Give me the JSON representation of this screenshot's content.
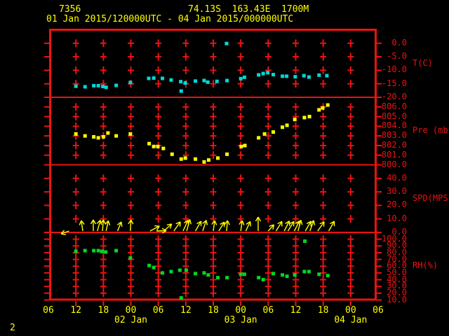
{
  "header": {
    "station_id": "7356",
    "location": "74.13S  163.43E  1700M",
    "time_range": "01 Jan 2015/120000UTC - 04 Jan 2015/000000UTC"
  },
  "footer": {
    "note": "2"
  },
  "colors": {
    "background": "#000000",
    "frame_red": "#ee1212",
    "label_yellow": "#ffff00",
    "temp": "#00d8d8",
    "pressure": "#ffff00",
    "wind": "#ffff00",
    "rh": "#00d822"
  },
  "chart_data": {
    "type": "scatter",
    "title": "station meteogram",
    "time_axis": {
      "start": "01 Jan 2015 06UTC",
      "end": "04 Jan 2015 06UTC",
      "unit_of_x": "hours after 01 Jan 2015 06UTC",
      "tick_interval_hours": 6,
      "hour_labels": [
        "06",
        "12",
        "18",
        "00",
        "06",
        "12",
        "18",
        "00",
        "06",
        "12",
        "18",
        "00",
        "06"
      ],
      "date_labels": [
        "02 Jan",
        "03 Jan",
        "04 Jan"
      ],
      "date_label_anchor_hours": [
        18,
        42,
        66
      ]
    },
    "panels": [
      {
        "name": "temperature",
        "type": "scatter",
        "axis_label": "T(C)",
        "yticks": [
          "0.0",
          "-5.0",
          "-10.0",
          "-15.0",
          "-20.0"
        ],
        "color_key": "temp",
        "points": [
          [
            6.0,
            -15.9
          ],
          [
            8.0,
            -16.1
          ],
          [
            9.9,
            -15.7
          ],
          [
            10.9,
            -15.7
          ],
          [
            11.9,
            -16.0
          ],
          [
            12.6,
            -16.3
          ],
          [
            14.8,
            -15.6
          ],
          [
            17.9,
            -14.5
          ],
          [
            21.9,
            -13.0
          ],
          [
            23.0,
            -12.9
          ],
          [
            24.9,
            -13.0
          ],
          [
            26.8,
            -13.6
          ],
          [
            28.9,
            -14.2
          ],
          [
            29.0,
            -17.7
          ],
          [
            29.9,
            -14.7
          ],
          [
            32.1,
            -14.0
          ],
          [
            34.0,
            -13.8
          ],
          [
            34.8,
            -14.4
          ],
          [
            36.8,
            -14.1
          ],
          [
            38.9,
            -0.1
          ],
          [
            39.0,
            -13.8
          ],
          [
            42.0,
            -13.1
          ],
          [
            42.8,
            -12.6
          ],
          [
            45.9,
            -11.7
          ],
          [
            46.9,
            -11.2
          ],
          [
            47.9,
            -10.9
          ],
          [
            49.1,
            -11.6
          ],
          [
            51.1,
            -12.2
          ],
          [
            52.0,
            -12.2
          ],
          [
            53.9,
            -12.4
          ],
          [
            55.8,
            -12.0
          ],
          [
            56.9,
            -12.5
          ],
          [
            59.1,
            -11.8
          ],
          [
            60.8,
            -12.0
          ]
        ]
      },
      {
        "name": "pressure",
        "type": "scatter",
        "axis_label": "Pre (mb)",
        "yticks": [
          "806.0",
          "805.0",
          "804.0",
          "803.0",
          "802.0",
          "801.0",
          "800.0"
        ],
        "color_key": "pressure",
        "points": [
          [
            6.0,
            803.2
          ],
          [
            8.0,
            803.0
          ],
          [
            9.9,
            802.9
          ],
          [
            10.9,
            802.8
          ],
          [
            12.0,
            802.9
          ],
          [
            13.0,
            803.3
          ],
          [
            14.8,
            803.0
          ],
          [
            17.9,
            803.2
          ],
          [
            22.0,
            802.2
          ],
          [
            23.0,
            801.9
          ],
          [
            23.9,
            801.9
          ],
          [
            25.1,
            801.7
          ],
          [
            27.0,
            801.1
          ],
          [
            29.0,
            800.6
          ],
          [
            29.9,
            800.7
          ],
          [
            32.1,
            800.6
          ],
          [
            34.0,
            800.3
          ],
          [
            35.0,
            800.5
          ],
          [
            37.0,
            800.7
          ],
          [
            39.0,
            801.1
          ],
          [
            42.1,
            801.9
          ],
          [
            42.9,
            802.0
          ],
          [
            45.9,
            802.8
          ],
          [
            47.2,
            803.2
          ],
          [
            49.1,
            803.4
          ],
          [
            51.1,
            803.9
          ],
          [
            52.1,
            804.1
          ],
          [
            53.8,
            804.7
          ],
          [
            55.9,
            804.9
          ],
          [
            57.0,
            805.0
          ],
          [
            59.1,
            805.7
          ],
          [
            59.9,
            805.9
          ],
          [
            61.0,
            806.2
          ]
        ]
      },
      {
        "name": "wind-speed",
        "type": "vector",
        "axis_label": "SPD(MPS)",
        "yticks": [
          "40.0",
          "30.0",
          "20.0",
          "10.0",
          "0.0"
        ],
        "color_key": "wind",
        "arrow_format": "[hours, direction_deg_clockwise_from_up, length_px]",
        "arrows": [
          [
            4.5,
            250,
            12
          ],
          [
            7.5,
            352,
            15
          ],
          [
            9.8,
            0,
            16
          ],
          [
            10.7,
            15,
            16
          ],
          [
            11.8,
            5,
            16
          ],
          [
            12.6,
            12,
            15
          ],
          [
            15.1,
            22,
            14
          ],
          [
            17.9,
            3,
            16
          ],
          [
            22.2,
            62,
            15
          ],
          [
            23.6,
            88,
            14
          ],
          [
            25.2,
            48,
            15
          ],
          [
            27.4,
            35,
            16
          ],
          [
            29.4,
            25,
            17
          ],
          [
            30.2,
            15,
            17
          ],
          [
            32.1,
            30,
            16
          ],
          [
            33.7,
            18,
            16
          ],
          [
            36.0,
            8,
            15
          ],
          [
            37.2,
            32,
            15
          ],
          [
            38.9,
            5,
            15
          ],
          [
            42.0,
            8,
            15
          ],
          [
            43.1,
            25,
            15
          ],
          [
            45.8,
            0,
            20
          ],
          [
            48.0,
            42,
            12
          ],
          [
            49.7,
            32,
            16
          ],
          [
            51.5,
            27,
            16
          ],
          [
            52.3,
            32,
            16
          ],
          [
            53.7,
            27,
            16
          ],
          [
            54.5,
            15,
            16
          ],
          [
            56.1,
            30,
            16
          ],
          [
            57.1,
            20,
            16
          ],
          [
            58.8,
            35,
            16
          ],
          [
            61.2,
            30,
            16
          ]
        ]
      },
      {
        "name": "relative-humidity",
        "type": "scatter",
        "axis_label": "RH(%)",
        "yticks": [
          "100.0",
          "90.0",
          "80.0",
          "70.0",
          "60.0",
          "50.0",
          "40.0",
          "30.0",
          "20.0",
          "10.0"
        ],
        "color_key": "rh",
        "points": [
          [
            6.0,
            82
          ],
          [
            8.0,
            83
          ],
          [
            9.9,
            83
          ],
          [
            10.9,
            83
          ],
          [
            11.7,
            82
          ],
          [
            12.5,
            81
          ],
          [
            14.8,
            83
          ],
          [
            17.9,
            72
          ],
          [
            22.0,
            61
          ],
          [
            23.0,
            58
          ],
          [
            24.9,
            50
          ],
          [
            26.8,
            52
          ],
          [
            28.7,
            54
          ],
          [
            29.0,
            13
          ],
          [
            30.1,
            54
          ],
          [
            32.1,
            49
          ],
          [
            34.0,
            50
          ],
          [
            34.9,
            47
          ],
          [
            37.0,
            43
          ],
          [
            39.0,
            43
          ],
          [
            42.0,
            48
          ],
          [
            42.8,
            48
          ],
          [
            45.9,
            43
          ],
          [
            46.9,
            40
          ],
          [
            49.1,
            49
          ],
          [
            51.1,
            47
          ],
          [
            52.1,
            45
          ],
          [
            53.8,
            47
          ],
          [
            55.9,
            52
          ],
          [
            56.0,
            97
          ],
          [
            56.9,
            52
          ],
          [
            59.1,
            48
          ],
          [
            61.0,
            46
          ]
        ]
      }
    ]
  }
}
